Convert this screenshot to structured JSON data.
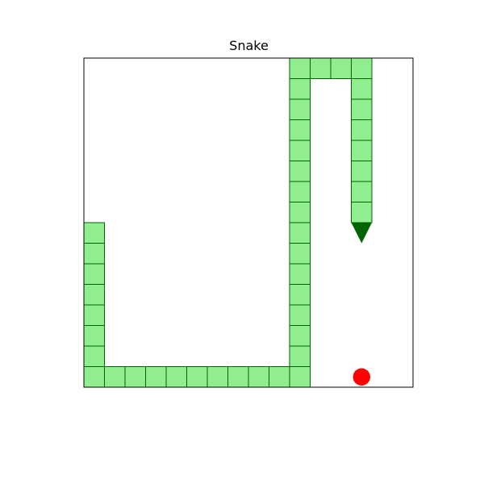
{
  "game": {
    "title": "Snake",
    "grid": {
      "cols": 16,
      "rows": 16
    },
    "snake": {
      "segments": [
        [
          0,
          8
        ],
        [
          0,
          9
        ],
        [
          0,
          10
        ],
        [
          0,
          11
        ],
        [
          0,
          12
        ],
        [
          0,
          13
        ],
        [
          0,
          14
        ],
        [
          0,
          15
        ],
        [
          1,
          15
        ],
        [
          2,
          15
        ],
        [
          3,
          15
        ],
        [
          4,
          15
        ],
        [
          5,
          15
        ],
        [
          6,
          15
        ],
        [
          7,
          15
        ],
        [
          8,
          15
        ],
        [
          9,
          15
        ],
        [
          10,
          15
        ],
        [
          10,
          14
        ],
        [
          10,
          13
        ],
        [
          10,
          12
        ],
        [
          10,
          11
        ],
        [
          10,
          10
        ],
        [
          10,
          9
        ],
        [
          10,
          8
        ],
        [
          10,
          7
        ],
        [
          10,
          6
        ],
        [
          10,
          5
        ],
        [
          10,
          4
        ],
        [
          10,
          3
        ],
        [
          10,
          2
        ],
        [
          10,
          1
        ],
        [
          10,
          0
        ],
        [
          11,
          0
        ],
        [
          12,
          0
        ],
        [
          13,
          0
        ],
        [
          13,
          1
        ],
        [
          13,
          2
        ],
        [
          13,
          3
        ],
        [
          13,
          4
        ],
        [
          13,
          5
        ],
        [
          13,
          6
        ],
        [
          13,
          7
        ]
      ],
      "head": {
        "cell": [
          13,
          8
        ],
        "direction": "down"
      }
    },
    "food": {
      "cell": [
        13,
        15
      ]
    },
    "colors": {
      "snake_body_fill": "#90ee90",
      "snake_body_stroke": "#006400",
      "snake_head": "#006400",
      "food": "#ff0000",
      "board_border": "#000000",
      "board_background": "#ffffff"
    }
  }
}
